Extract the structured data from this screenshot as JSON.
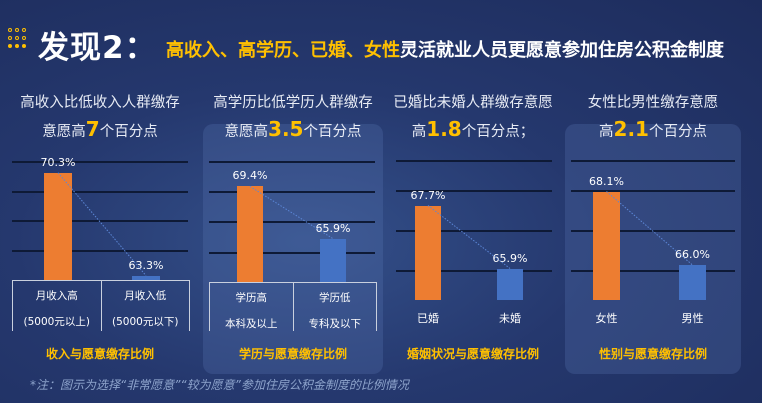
{
  "header": {
    "title": "发现2：",
    "subtitle_highlight": "高收入、高学历、已婚、女性",
    "subtitle_rest": "灵活就业人员更愿意参加住房公积金制度"
  },
  "colors": {
    "accent": "#ffc000",
    "orange_bar": "#ed7d31",
    "blue_bar": "#4472c4"
  },
  "chart_data": [
    {
      "type": "bar",
      "headline_pre": "高收入比低收入人群缴存",
      "headline_mid_pre": "意愿高",
      "headline_num": "7",
      "headline_post": "个百分点",
      "categories": [
        "月收入高",
        "月收入低"
      ],
      "category_sub": [
        "(5000元以上)",
        "(5000元以下)"
      ],
      "values": [
        70.3,
        63.3
      ],
      "labels": [
        "70.3%",
        "63.3%"
      ],
      "ylim": [
        63,
        71.1
      ],
      "caption": "收入与愿意缴存比例",
      "grid": true
    },
    {
      "type": "bar",
      "headline_pre": "高学历比低学历人群缴存",
      "headline_mid_pre": "意愿高",
      "headline_num": "3.5",
      "headline_post": "个百分点",
      "categories": [
        "学历高",
        "学历低"
      ],
      "category_sub": [
        "本科及以上",
        "专科及以下"
      ],
      "values": [
        69.4,
        65.9
      ],
      "labels": [
        "69.4%",
        "65.9%"
      ],
      "ylim": [
        63,
        71.1
      ],
      "caption": "学历与愿意缴存比例",
      "grid": true
    },
    {
      "type": "bar",
      "headline_pre": "已婚比未婚人群缴存意愿",
      "headline_mid_pre": "高",
      "headline_num": "1.8",
      "headline_post": "个百分点；",
      "categories": [
        "已婚",
        "未婚"
      ],
      "values": [
        67.7,
        65.9
      ],
      "labels": [
        "67.7%",
        "65.9%"
      ],
      "ylim": [
        65,
        69
      ],
      "caption": "婚姻状况与愿意缴存比例",
      "grid": true
    },
    {
      "type": "bar",
      "headline_pre": "女性比男性缴存意愿",
      "headline_mid_pre": "高",
      "headline_num": "2.1",
      "headline_post": "个百分点",
      "categories": [
        "女性",
        "男性"
      ],
      "values": [
        68.1,
        66.0
      ],
      "labels": [
        "68.1%",
        "66.0%"
      ],
      "ylim": [
        65,
        69
      ],
      "caption": "性别与愿意缴存比例",
      "grid": true
    }
  ],
  "note": "*注：图示为选择“非常愿意”“较为愿意”参加住房公积金制度的比例情况"
}
